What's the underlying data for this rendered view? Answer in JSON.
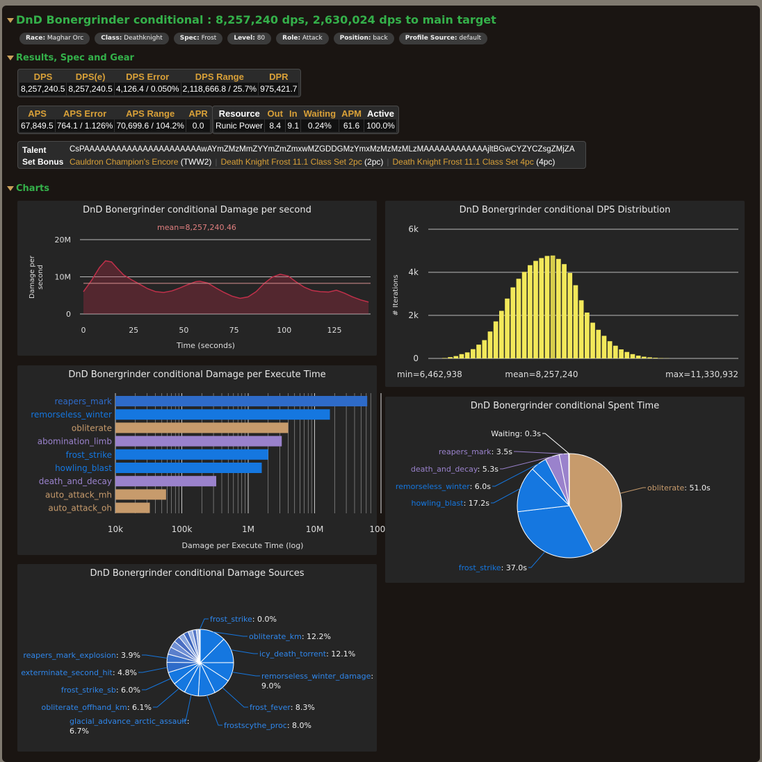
{
  "header": {
    "title": "DnD Bonergrinder conditional : 8,257,240 dps, 2,630,024 dps to main target",
    "pills": [
      {
        "key": "Race:",
        "value": "Maghar Orc"
      },
      {
        "key": "Class:",
        "value": "Deathknight"
      },
      {
        "key": "Spec:",
        "value": "Frost"
      },
      {
        "key": "Level:",
        "value": "80"
      },
      {
        "key": "Role:",
        "value": "Attack"
      },
      {
        "key": "Position:",
        "value": "back"
      },
      {
        "key": "Profile Source:",
        "value": "default"
      }
    ]
  },
  "sections": {
    "results": "Results, Spec and Gear",
    "charts": "Charts"
  },
  "dps_table": {
    "headers": [
      "DPS",
      "DPS(e)",
      "DPS Error",
      "DPS Range",
      "DPR"
    ],
    "values": [
      "8,257,240.5",
      "8,257,240.5",
      "4,126.4 / 0.050%",
      "2,118,666.8 / 25.7%",
      "975,421.7"
    ]
  },
  "aps_table": {
    "headers": [
      "APS",
      "APS Error",
      "APS Range",
      "APR"
    ],
    "values": [
      "67,849.5",
      "764.1 / 1.126%",
      "70,699.6 / 104.2%",
      "0.0"
    ]
  },
  "resource_table": {
    "headers": [
      "Resource",
      "Out",
      "In",
      "Waiting",
      "APM",
      "Active"
    ],
    "values": [
      "Runic Power",
      "8.4",
      "9.1",
      "0.24%",
      "61.6",
      "100.0%"
    ]
  },
  "talent": {
    "label": "Talent",
    "value": "CsPAAAAAAAAAAAAAAAAAAAAAAwAYmZMzMmZYYmZmZmxwMZGDDGMzYmxMzMzMzMLzMAAAAAAAAAAAAjltBGwCYZYCZsgZMjZA"
  },
  "set_bonus": {
    "label": "Set Bonus",
    "items": [
      {
        "name": "Cauldron Champion's Encore",
        "tag": "(TWW2)"
      },
      {
        "name": "Death Knight Frost 11.1 Class Set 2pc",
        "tag": "(2pc)"
      },
      {
        "name": "Death Knight Frost 11.1 Class Set 4pc",
        "tag": "(4pc)"
      }
    ]
  },
  "chart_data": [
    {
      "type": "area",
      "title": "DnD Bonergrinder conditional Damage per second",
      "annotation": "mean=8,257,240.46",
      "xlabel": "Time (seconds)",
      "ylabel": "Damage per second",
      "xticks": [
        "0",
        "25",
        "50",
        "75",
        "100",
        "125"
      ],
      "yticks": [
        "0",
        "10M",
        "20M"
      ],
      "xlim": [
        0,
        143
      ],
      "ylim": [
        0,
        20000000
      ],
      "mean": 8257240.46,
      "color": "#c0304a",
      "x": [
        0,
        4,
        8,
        11,
        14,
        17,
        20,
        24,
        28,
        32,
        36,
        40,
        44,
        48,
        52,
        56,
        58,
        62,
        66,
        70,
        74,
        78,
        82,
        86,
        90,
        94,
        98,
        102,
        106,
        110,
        114,
        118,
        122,
        126,
        130,
        134,
        138,
        142
      ],
      "y": [
        6000000,
        9000000,
        12500000,
        14300000,
        14000000,
        12200000,
        10500000,
        9200000,
        8000000,
        6800000,
        6000000,
        5800000,
        6200000,
        7000000,
        7900000,
        8700000,
        8800000,
        8300000,
        7000000,
        5800000,
        4800000,
        4200000,
        4600000,
        6000000,
        8200000,
        9900000,
        10700000,
        10200000,
        8600000,
        7200000,
        6300000,
        6000000,
        5900000,
        6400000,
        5600000,
        4600000,
        3800000,
        3200000
      ]
    },
    {
      "type": "bar",
      "title": "DnD Bonergrinder conditional DPS Distribution",
      "ylabel": "# Iterations",
      "yticks": [
        "0",
        "2k",
        "4k",
        "6k"
      ],
      "ylim": [
        0,
        6000
      ],
      "min_label": "min=6,462,938",
      "mean_label": "mean=8,257,240",
      "max_label": "max=11,330,932",
      "color": "#f2e85a",
      "values": [
        20,
        60,
        110,
        200,
        280,
        430,
        640,
        850,
        1250,
        1720,
        2210,
        2780,
        3300,
        3700,
        4020,
        4330,
        4530,
        4660,
        4760,
        4780,
        4620,
        4380,
        3970,
        3400,
        2700,
        2130,
        1660,
        1330,
        1050,
        800,
        590,
        420,
        300,
        200,
        130,
        80,
        50,
        30,
        15,
        8
      ]
    },
    {
      "type": "bar",
      "orientation": "horizontal",
      "scale": "log",
      "title": "DnD Bonergrinder conditional Damage per Execute Time",
      "xlabel": "Damage per Execute Time (log)",
      "xticks": [
        "10k",
        "100k",
        "1M",
        "10M",
        "100M"
      ],
      "categories": [
        "reapers_mark",
        "remorseless_winter",
        "obliterate",
        "abomination_limb",
        "frost_strike",
        "howling_blast",
        "death_and_decay",
        "auto_attack_mh",
        "auto_attack_oh"
      ],
      "values": [
        62000000,
        17000000,
        4000000,
        3200000,
        2000000,
        1600000,
        330000,
        58000,
        33000
      ],
      "colors": [
        "#2e6bc9",
        "#1577e0",
        "#c79b6c",
        "#9a82cc",
        "#1577e0",
        "#1577e0",
        "#9a82cc",
        "#c79b6c",
        "#c79b6c"
      ]
    },
    {
      "type": "pie",
      "title": "DnD Bonergrinder conditional Spent Time",
      "labels": [
        "obliterate",
        "frost_strike",
        "howling_blast",
        "remorseless_winter",
        "death_and_decay",
        "reapers_mark",
        "Waiting"
      ],
      "values": [
        51.0,
        37.0,
        17.2,
        6.0,
        5.3,
        3.5,
        0.3
      ],
      "value_labels": [
        "51.0s",
        "37.0s",
        "17.2s",
        "6.0s",
        "5.3s",
        "3.5s",
        "0.3s"
      ],
      "colors": [
        "#c79b6c",
        "#1577e0",
        "#1577e0",
        "#1577e0",
        "#9a82cc",
        "#9a82cc",
        "#ffffff"
      ]
    },
    {
      "type": "pie",
      "title": "DnD Bonergrinder conditional Damage Sources",
      "labels": [
        "obliterate_km",
        "icy_death_torrent",
        "remorseless_winter_damage",
        "frost_fever",
        "frostscythe_proc",
        "glacial_advance_arctic_assault",
        "obliterate_offhand_km",
        "frost_strike_sb",
        "exterminate_second_hit",
        "reapers_mark_explosion",
        "frost_strike"
      ],
      "values": [
        12.2,
        12.1,
        9.0,
        8.3,
        8.0,
        6.7,
        6.1,
        6.0,
        4.8,
        3.9,
        0.0
      ],
      "value_labels": [
        "12.2%",
        "12.1%",
        "9.0%",
        "8.3%",
        "8.0%",
        "6.7%",
        "6.1%",
        "6.0%",
        "4.8%",
        "3.9%",
        "0.0%"
      ],
      "other_slices": [
        3.5,
        3.2,
        2.9,
        2.6,
        2.3,
        2.1,
        1.8,
        1.5
      ],
      "colors": [
        "#1577e0",
        "#1577e0",
        "#1577e0",
        "#1577e0",
        "#1577e0",
        "#1577e0",
        "#1577e0",
        "#1577e0",
        "#2e6bc9",
        "#3a72cc",
        "#1577e0"
      ]
    }
  ]
}
